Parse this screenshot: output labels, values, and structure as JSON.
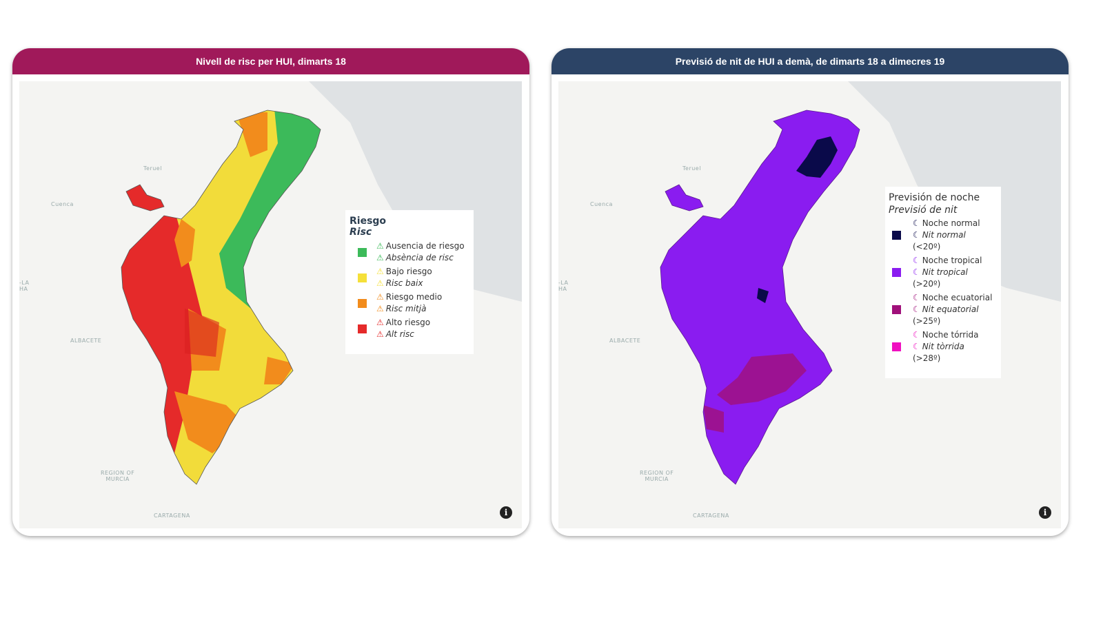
{
  "left": {
    "title": "Nivell de risc per HUI, dimarts 18",
    "header_color": "#a0195a",
    "legend": {
      "title": "Riesgo",
      "subtitle": "Risc",
      "items": [
        {
          "es": "Ausencia de riesgo",
          "ca": "Absència de risc",
          "color": "#3cba5a",
          "icon": "warning-triangle-icon"
        },
        {
          "es": "Bajo riesgo",
          "ca": "Risc baix",
          "color": "#f5e03a",
          "icon": "warning-triangle-icon"
        },
        {
          "es": "Riesgo medio",
          "ca": "Risc mitjà",
          "color": "#f28c1c",
          "icon": "warning-triangle-icon"
        },
        {
          "es": "Alto riesgo",
          "ca": "Alt risc",
          "color": "#e52a2a",
          "icon": "warning-triangle-icon"
        }
      ]
    }
  },
  "right": {
    "title": "Previsió de nit de HUI a demà, de dimarts 18 a dimecres 19",
    "header_color": "#2c4466",
    "legend": {
      "title": "Previsión de noche",
      "subtitle": "Previsió de nit",
      "items": [
        {
          "es": "Noche normal",
          "ca": "Nit normal",
          "range": "(<20º)",
          "color": "#0a0a4a",
          "icon": "moon-icon"
        },
        {
          "es": "Noche tropical",
          "ca": "Nit tropical",
          "range": "(>20º)",
          "color": "#8a1cf0",
          "icon": "moon-icon"
        },
        {
          "es": "Noche ecuatorial",
          "ca": "Nit equatorial",
          "range": "(>25º)",
          "color": "#a0107a",
          "icon": "moon-icon"
        },
        {
          "es": "Noche tórrida",
          "ca": "Nit tòrrida",
          "range": "(>28º)",
          "color": "#f010c0",
          "icon": "moon-icon"
        }
      ]
    }
  },
  "places": {
    "teruel": "Teruel",
    "cuenca": "Cuenca",
    "albacete": "ALBACETE",
    "clm": "-LA\nHA",
    "murcia": "REGION OF\nMURCIA",
    "cartagena": "CARTAGENA"
  },
  "info": "i"
}
